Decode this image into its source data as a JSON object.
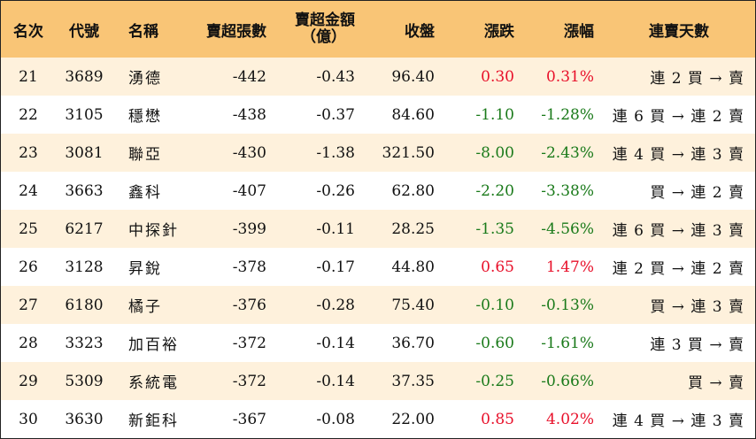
{
  "headers": {
    "rank": "名次",
    "code": "代號",
    "name": "名稱",
    "sell_lots": "賣超張數",
    "sell_amount_line1": "賣超金額",
    "sell_amount_line2": "（億）",
    "close": "收盤",
    "change": "漲跌",
    "pct": "漲幅",
    "streak": "連賣天數"
  },
  "colors": {
    "header_bg": "#f9c576",
    "stripe_bg": "#fef1dc",
    "up": "#e8102a",
    "down": "#1a7a1a"
  },
  "rows": [
    {
      "rank": "21",
      "code": "3689",
      "name": "湧德",
      "sell_lots": "-442",
      "sell_amount": "-0.43",
      "close": "96.40",
      "change": "0.30",
      "pct": "0.31%",
      "dir": "up",
      "streak": "連 2 買 → 賣"
    },
    {
      "rank": "22",
      "code": "3105",
      "name": "穩懋",
      "sell_lots": "-438",
      "sell_amount": "-0.37",
      "close": "84.60",
      "change": "-1.10",
      "pct": "-1.28%",
      "dir": "down",
      "streak": "連 6 買 → 連 2 賣"
    },
    {
      "rank": "23",
      "code": "3081",
      "name": "聯亞",
      "sell_lots": "-430",
      "sell_amount": "-1.38",
      "close": "321.50",
      "change": "-8.00",
      "pct": "-2.43%",
      "dir": "down",
      "streak": "連 4 買 → 連 3 賣"
    },
    {
      "rank": "24",
      "code": "3663",
      "name": "鑫科",
      "sell_lots": "-407",
      "sell_amount": "-0.26",
      "close": "62.80",
      "change": "-2.20",
      "pct": "-3.38%",
      "dir": "down",
      "streak": "買 → 連 2 賣"
    },
    {
      "rank": "25",
      "code": "6217",
      "name": "中探針",
      "sell_lots": "-399",
      "sell_amount": "-0.11",
      "close": "28.25",
      "change": "-1.35",
      "pct": "-4.56%",
      "dir": "down",
      "streak": "連 6 買 → 連 3 賣"
    },
    {
      "rank": "26",
      "code": "3128",
      "name": "昇銳",
      "sell_lots": "-378",
      "sell_amount": "-0.17",
      "close": "44.80",
      "change": "0.65",
      "pct": "1.47%",
      "dir": "up",
      "streak": "連 2 買 → 連 2 賣"
    },
    {
      "rank": "27",
      "code": "6180",
      "name": "橘子",
      "sell_lots": "-376",
      "sell_amount": "-0.28",
      "close": "75.40",
      "change": "-0.10",
      "pct": "-0.13%",
      "dir": "down",
      "streak": "買 → 連 3 賣"
    },
    {
      "rank": "28",
      "code": "3323",
      "name": "加百裕",
      "sell_lots": "-372",
      "sell_amount": "-0.14",
      "close": "36.70",
      "change": "-0.60",
      "pct": "-1.61%",
      "dir": "down",
      "streak": "連 3 買 → 賣"
    },
    {
      "rank": "29",
      "code": "5309",
      "name": "系統電",
      "sell_lots": "-372",
      "sell_amount": "-0.14",
      "close": "37.35",
      "change": "-0.25",
      "pct": "-0.66%",
      "dir": "down",
      "streak": "買 → 賣"
    },
    {
      "rank": "30",
      "code": "3630",
      "name": "新鉅科",
      "sell_lots": "-367",
      "sell_amount": "-0.08",
      "close": "22.00",
      "change": "0.85",
      "pct": "4.02%",
      "dir": "up",
      "streak": "連 4 買 → 連 3 賣"
    }
  ]
}
